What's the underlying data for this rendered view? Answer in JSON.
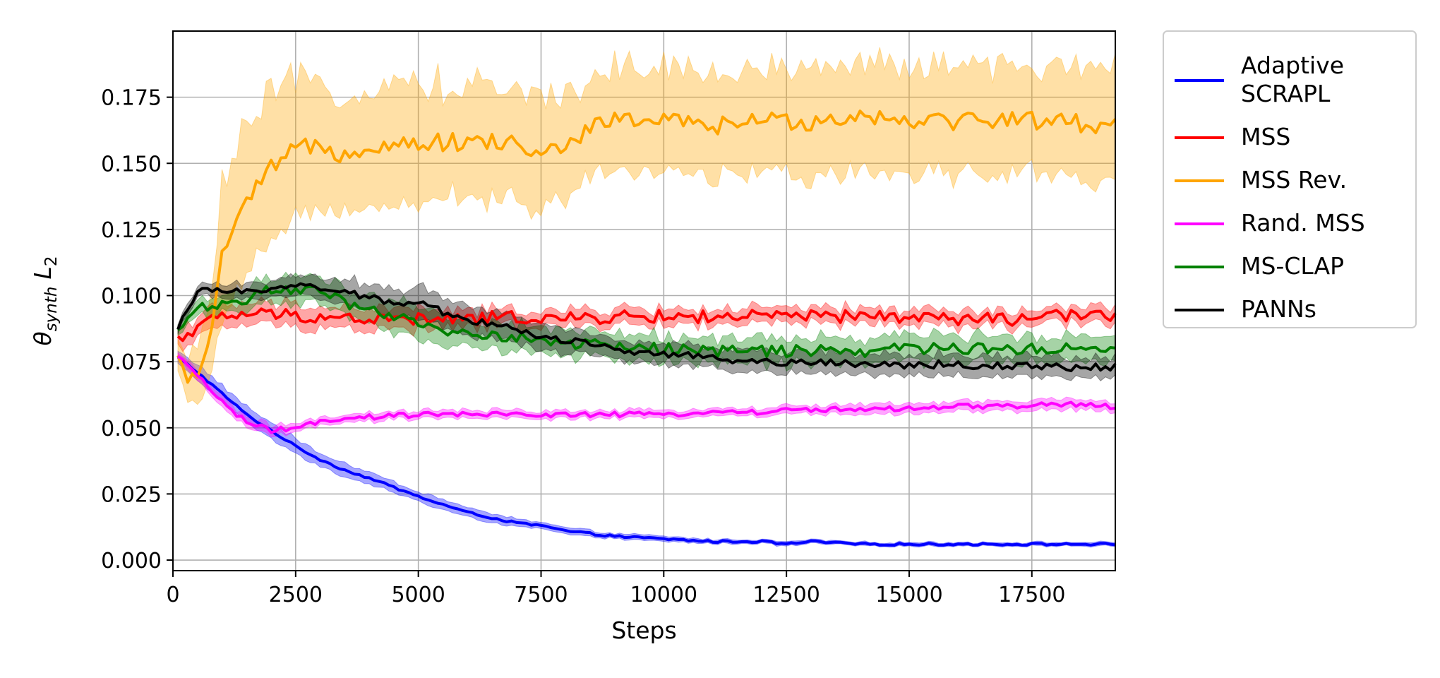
{
  "chart_data": {
    "type": "line",
    "xlabel": "Steps",
    "ylabel": {
      "base": "θ",
      "sub": "synth",
      "var": "L",
      "var_sub": "2"
    },
    "xlim": [
      0,
      19200
    ],
    "ylim": [
      -0.004,
      0.2
    ],
    "xticks": [
      0,
      2500,
      5000,
      7500,
      10000,
      12500,
      15000,
      17500
    ],
    "xtick_labels": [
      "0",
      "2500",
      "5000",
      "7500",
      "10000",
      "12500",
      "15000",
      "17500"
    ],
    "yticks": [
      0.0,
      0.025,
      0.05,
      0.075,
      0.1,
      0.125,
      0.15,
      0.175
    ],
    "ytick_labels": [
      "0.000",
      "0.025",
      "0.050",
      "0.075",
      "0.100",
      "0.125",
      "0.150",
      "0.175"
    ],
    "grid": true,
    "legend_position": "outside-right-top",
    "series": [
      {
        "name": "Adaptive SCRAPL",
        "legend_lines": [
          "Adaptive",
          "SCRAPL"
        ],
        "color": "#0000ff",
        "x": [
          0,
          500,
          1000,
          1500,
          2000,
          2500,
          3000,
          3500,
          4000,
          5000,
          6000,
          7000,
          7500,
          8000,
          9000,
          10000,
          11000,
          12000,
          12500,
          13000,
          14000,
          15000,
          16000,
          17000,
          18000,
          19200
        ],
        "y": [
          0.078,
          0.071,
          0.063,
          0.055,
          0.049,
          0.043,
          0.038,
          0.034,
          0.031,
          0.024,
          0.018,
          0.014,
          0.013,
          0.011,
          0.009,
          0.008,
          0.007,
          0.007,
          0.006,
          0.007,
          0.006,
          0.006,
          0.006,
          0.006,
          0.006,
          0.006
        ],
        "band": [
          0.0025,
          0.003,
          0.003,
          0.003,
          0.003,
          0.0028,
          0.0025,
          0.0025,
          0.0022,
          0.002,
          0.0018,
          0.0015,
          0.0013,
          0.0012,
          0.001,
          0.001,
          0.0008,
          0.0008,
          0.0008,
          0.0008,
          0.0007,
          0.0007,
          0.0007,
          0.0007,
          0.0007,
          0.0007
        ],
        "noise": 0.0004
      },
      {
        "name": "MSS",
        "color": "#ff0000",
        "x": [
          0,
          300,
          600,
          1000,
          1500,
          2000,
          3000,
          4000,
          5000,
          6000,
          7000,
          8000,
          9000,
          10000,
          11000,
          12000,
          13000,
          14000,
          15000,
          16000,
          17000,
          18000,
          19200
        ],
        "y": [
          0.082,
          0.086,
          0.089,
          0.092,
          0.093,
          0.093,
          0.092,
          0.091,
          0.091,
          0.091,
          0.092,
          0.091,
          0.092,
          0.092,
          0.092,
          0.092,
          0.092,
          0.092,
          0.092,
          0.091,
          0.091,
          0.092,
          0.093
        ],
        "band": [
          0.003,
          0.004,
          0.004,
          0.004,
          0.004,
          0.004,
          0.004,
          0.004,
          0.004,
          0.003,
          0.003,
          0.003,
          0.003,
          0.003,
          0.003,
          0.003,
          0.003,
          0.003,
          0.003,
          0.003,
          0.003,
          0.003,
          0.003
        ],
        "noise": 0.0025
      },
      {
        "name": "MSS Rev.",
        "color": "#ffa500",
        "x": [
          0,
          300,
          500,
          700,
          1000,
          1300,
          1700,
          2000,
          2500,
          3000,
          3500,
          4000,
          5000,
          6000,
          7000,
          7500,
          8000,
          9000,
          10000,
          11000,
          12000,
          13000,
          14000,
          15000,
          16000,
          17000,
          18000,
          19200
        ],
        "y": [
          0.078,
          0.07,
          0.066,
          0.08,
          0.115,
          0.128,
          0.14,
          0.148,
          0.155,
          0.158,
          0.153,
          0.157,
          0.158,
          0.158,
          0.158,
          0.152,
          0.158,
          0.167,
          0.166,
          0.164,
          0.166,
          0.166,
          0.168,
          0.167,
          0.166,
          0.167,
          0.166,
          0.164
        ],
        "band": [
          0.004,
          0.008,
          0.01,
          0.016,
          0.025,
          0.027,
          0.027,
          0.027,
          0.025,
          0.023,
          0.023,
          0.022,
          0.022,
          0.021,
          0.021,
          0.021,
          0.02,
          0.02,
          0.02,
          0.02,
          0.02,
          0.02,
          0.02,
          0.02,
          0.02,
          0.02,
          0.02,
          0.02
        ],
        "noise": 0.0035
      },
      {
        "name": "Rand. MSS",
        "color": "#ff00ff",
        "x": [
          0,
          500,
          1000,
          1500,
          2000,
          2500,
          3000,
          4000,
          5000,
          6000,
          7000,
          8000,
          9000,
          10000,
          11000,
          12000,
          13000,
          14000,
          15000,
          16000,
          17000,
          18000,
          19200
        ],
        "y": [
          0.078,
          0.07,
          0.06,
          0.052,
          0.049,
          0.05,
          0.052,
          0.054,
          0.055,
          0.055,
          0.055,
          0.055,
          0.055,
          0.055,
          0.056,
          0.056,
          0.057,
          0.057,
          0.057,
          0.058,
          0.058,
          0.059,
          0.058
        ],
        "band": [
          0.001,
          0.002,
          0.002,
          0.002,
          0.002,
          0.0015,
          0.0015,
          0.0015,
          0.0015,
          0.0015,
          0.0015,
          0.0015,
          0.0015,
          0.0015,
          0.0015,
          0.0015,
          0.0015,
          0.002,
          0.002,
          0.002,
          0.002,
          0.002,
          0.002
        ],
        "noise": 0.001
      },
      {
        "name": "MS-CLAP",
        "color": "#008000",
        "x": [
          0,
          300,
          600,
          1000,
          1500,
          2000,
          2500,
          3000,
          3500,
          4000,
          4500,
          5000,
          5500,
          6000,
          7000,
          8000,
          9000,
          10000,
          11000,
          12000,
          13000,
          14000,
          15000,
          16000,
          17000,
          18000,
          19200
        ],
        "y": [
          0.082,
          0.092,
          0.096,
          0.097,
          0.099,
          0.102,
          0.103,
          0.101,
          0.097,
          0.094,
          0.092,
          0.089,
          0.087,
          0.086,
          0.084,
          0.082,
          0.081,
          0.08,
          0.079,
          0.079,
          0.079,
          0.079,
          0.08,
          0.08,
          0.08,
          0.08,
          0.08
        ],
        "band": [
          0.002,
          0.002,
          0.003,
          0.003,
          0.004,
          0.005,
          0.005,
          0.005,
          0.005,
          0.005,
          0.006,
          0.006,
          0.006,
          0.005,
          0.005,
          0.005,
          0.005,
          0.005,
          0.005,
          0.005,
          0.005,
          0.005,
          0.005,
          0.005,
          0.005,
          0.005,
          0.005
        ],
        "noise": 0.0022
      },
      {
        "name": "PANNs",
        "color": "#000000",
        "x": [
          0,
          300,
          600,
          1000,
          1500,
          2000,
          2500,
          3000,
          3500,
          4000,
          4500,
          5000,
          5500,
          6000,
          7000,
          8000,
          9000,
          10000,
          11000,
          12000,
          13000,
          14000,
          15000,
          16000,
          17000,
          18000,
          19200
        ],
        "y": [
          0.081,
          0.096,
          0.102,
          0.101,
          0.102,
          0.103,
          0.104,
          0.103,
          0.101,
          0.099,
          0.098,
          0.097,
          0.094,
          0.091,
          0.087,
          0.083,
          0.08,
          0.078,
          0.076,
          0.075,
          0.075,
          0.074,
          0.074,
          0.074,
          0.073,
          0.073,
          0.073
        ],
        "band": [
          0.002,
          0.002,
          0.002,
          0.003,
          0.003,
          0.003,
          0.004,
          0.004,
          0.005,
          0.005,
          0.005,
          0.006,
          0.006,
          0.006,
          0.005,
          0.005,
          0.004,
          0.004,
          0.004,
          0.004,
          0.004,
          0.004,
          0.004,
          0.004,
          0.004,
          0.004,
          0.004
        ],
        "noise": 0.0015
      }
    ]
  }
}
